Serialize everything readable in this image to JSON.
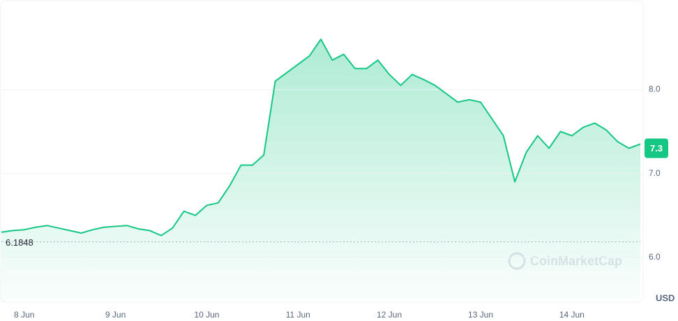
{
  "chart_data": {
    "type": "line",
    "categories": [
      null,
      null,
      "8 Jun",
      null,
      null,
      null,
      null,
      null,
      null,
      null,
      "9 Jun",
      null,
      null,
      null,
      null,
      null,
      null,
      null,
      "10 Jun",
      null,
      null,
      null,
      null,
      null,
      null,
      null,
      "11 Jun",
      null,
      null,
      null,
      null,
      null,
      null,
      null,
      "12 Jun",
      null,
      null,
      null,
      null,
      null,
      null,
      null,
      "13 Jun",
      null,
      null,
      null,
      null,
      null,
      null,
      null,
      "14 Jun",
      null,
      null,
      null,
      null,
      null,
      null
    ],
    "series": [
      {
        "name": null,
        "color": "#16c784",
        "values": [
          6.3,
          6.32,
          6.33,
          6.36,
          6.38,
          6.35,
          6.32,
          6.29,
          6.33,
          6.36,
          6.37,
          6.38,
          6.34,
          6.32,
          6.26,
          6.35,
          6.55,
          6.5,
          6.62,
          6.65,
          6.85,
          7.1,
          7.1,
          7.22,
          8.1,
          8.2,
          8.3,
          8.4,
          8.6,
          8.35,
          8.42,
          8.25,
          8.25,
          8.35,
          8.18,
          8.05,
          8.18,
          8.12,
          8.05,
          7.95,
          7.85,
          7.88,
          7.85,
          7.65,
          7.45,
          6.9,
          7.25,
          7.45,
          7.3,
          7.5,
          7.45,
          7.55,
          7.6,
          7.52,
          7.38,
          7.3,
          7.35
        ]
      }
    ],
    "ylim": [
      5.475,
      9.067
    ],
    "yticks": [
      {
        "value": 6,
        "label": "6.0"
      },
      {
        "value": 7,
        "label": "7.0"
      },
      {
        "value": 8,
        "label": "8.0"
      }
    ],
    "grid": true,
    "current_price": 7.3,
    "reference_price": 6.1848,
    "currency": "USD",
    "watermark": "CoinMarketCap"
  }
}
